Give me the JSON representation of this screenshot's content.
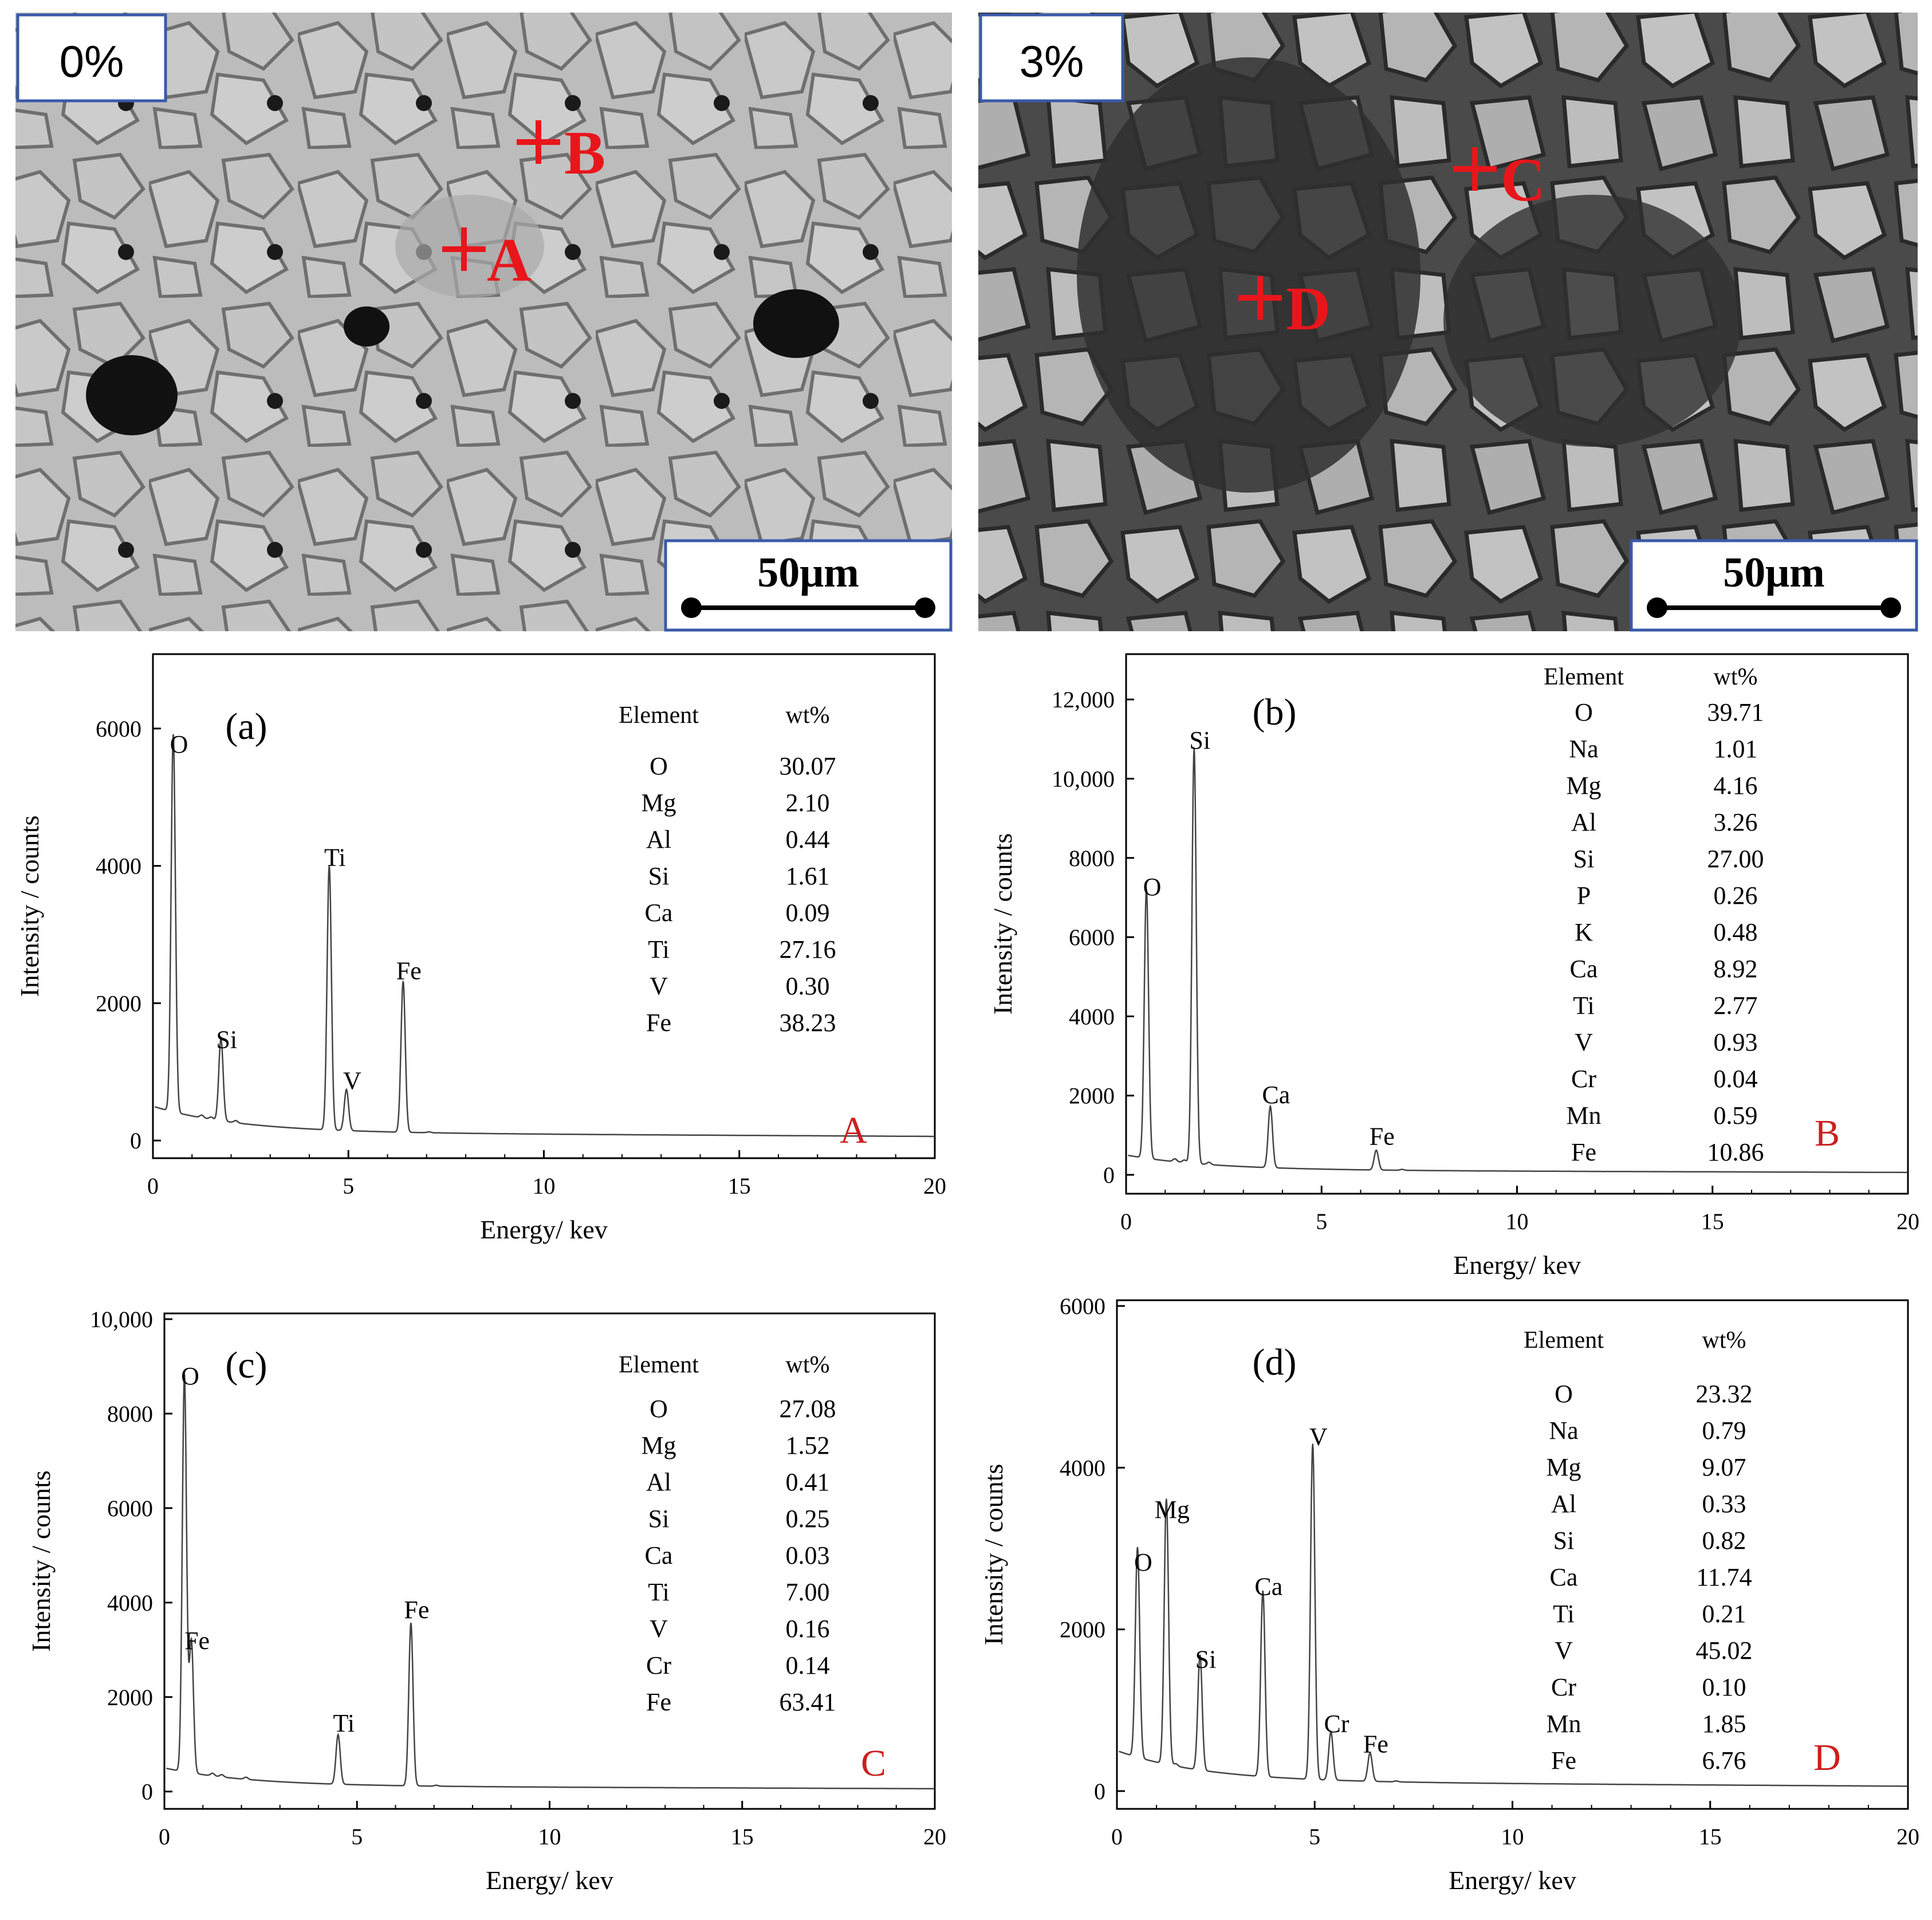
{
  "sem_panels": [
    {
      "label": "0%",
      "scalebar": "50μm",
      "points": [
        "A",
        "B"
      ]
    },
    {
      "label": "3%",
      "scalebar": "50μm",
      "points": [
        "C",
        "D"
      ]
    }
  ],
  "chart_data": [
    {
      "type": "line",
      "panel": "(a)",
      "point_label": "A",
      "xlabel": "Energy/ kev",
      "ylabel": "Intensity / counts",
      "xlim": [
        0,
        20
      ],
      "ylim": [
        0,
        7000
      ],
      "xticks": [
        0,
        5,
        10,
        15,
        20
      ],
      "yticks": [
        0,
        2000,
        4000,
        6000
      ],
      "ytick_labels": [
        "0",
        "2000",
        "4000",
        "6000"
      ],
      "peaks": [
        {
          "element": "O",
          "energy": 0.52,
          "intensity": 5500
        },
        {
          "element": "Si",
          "energy": 1.74,
          "intensity": 1200
        },
        {
          "element": "Ti",
          "energy": 4.51,
          "intensity": 3850
        },
        {
          "element": "V",
          "energy": 4.95,
          "intensity": 600
        },
        {
          "element": "Fe",
          "energy": 6.4,
          "intensity": 2200
        }
      ],
      "table_headers": [
        "Element",
        "wt%"
      ],
      "table": [
        [
          "O",
          "30.07"
        ],
        [
          "Mg",
          "2.10"
        ],
        [
          "Al",
          "0.44"
        ],
        [
          "Si",
          "1.61"
        ],
        [
          "Ca",
          "0.09"
        ],
        [
          "Ti",
          "27.16"
        ],
        [
          "V",
          "0.30"
        ],
        [
          "Fe",
          "38.23"
        ]
      ]
    },
    {
      "type": "line",
      "panel": "(b)",
      "point_label": "B",
      "xlabel": "Energy/ kev",
      "ylabel": "Intensity / counts",
      "xlim": [
        0,
        20
      ],
      "ylim": [
        0,
        13000
      ],
      "xticks": [
        0,
        5,
        10,
        15,
        20
      ],
      "yticks": [
        0,
        2000,
        4000,
        6000,
        8000,
        10000,
        12000
      ],
      "ytick_labels": [
        "0",
        "2000",
        "4000",
        "6000",
        "8000",
        "10,000",
        "12,000"
      ],
      "peaks": [
        {
          "element": "O",
          "energy": 0.52,
          "intensity": 6800
        },
        {
          "element": "Si",
          "energy": 1.74,
          "intensity": 10500
        },
        {
          "element": "Ca",
          "energy": 3.69,
          "intensity": 1550
        },
        {
          "element": "Fe",
          "energy": 6.4,
          "intensity": 500
        }
      ],
      "table_headers": [
        "Element",
        "wt%"
      ],
      "table": [
        [
          "O",
          "39.71"
        ],
        [
          "Na",
          "1.01"
        ],
        [
          "Mg",
          "4.16"
        ],
        [
          "Al",
          "3.26"
        ],
        [
          "Si",
          "27.00"
        ],
        [
          "P",
          "0.26"
        ],
        [
          "K",
          "0.48"
        ],
        [
          "Ca",
          "8.92"
        ],
        [
          "Ti",
          "2.77"
        ],
        [
          "V",
          "0.93"
        ],
        [
          "Cr",
          "0.04"
        ],
        [
          "Mn",
          "0.59"
        ],
        [
          "Fe",
          "10.86"
        ]
      ]
    },
    {
      "type": "line",
      "panel": "(c)",
      "point_label": "C",
      "xlabel": "Energy/ kev",
      "ylabel": "Intensity / counts",
      "xlim": [
        0,
        20
      ],
      "ylim": [
        0,
        10000
      ],
      "xticks": [
        0,
        5,
        10,
        15,
        20
      ],
      "yticks": [
        0,
        2000,
        4000,
        6000,
        8000,
        10000
      ],
      "ytick_labels": [
        "0",
        "2000",
        "4000",
        "6000",
        "8000",
        "10,000"
      ],
      "peaks": [
        {
          "element": "O",
          "energy": 0.52,
          "intensity": 8400
        },
        {
          "element": "Fe",
          "energy": 0.7,
          "intensity": 2800
        },
        {
          "element": "Ti",
          "energy": 4.51,
          "intensity": 1050
        },
        {
          "element": "Fe",
          "energy": 6.4,
          "intensity": 3450
        }
      ],
      "table_headers": [
        "Element",
        "wt%"
      ],
      "table": [
        [
          "O",
          "27.08"
        ],
        [
          "Mg",
          "1.52"
        ],
        [
          "Al",
          "0.41"
        ],
        [
          "Si",
          "0.25"
        ],
        [
          "Ca",
          "0.03"
        ],
        [
          "Ti",
          "7.00"
        ],
        [
          "V",
          "0.16"
        ],
        [
          "Cr",
          "0.14"
        ],
        [
          "Fe",
          "63.41"
        ]
      ]
    },
    {
      "type": "line",
      "panel": "(d)",
      "point_label": "D",
      "xlabel": "Energy/ kev",
      "ylabel": "Intensity / counts",
      "xlim": [
        0,
        20
      ],
      "ylim": [
        0,
        6000
      ],
      "xticks": [
        0,
        5,
        10,
        15,
        20
      ],
      "yticks": [
        0,
        2000,
        4000,
        6000
      ],
      "ytick_labels": [
        "0",
        "2000",
        "4000",
        "6000"
      ],
      "peaks": [
        {
          "element": "O",
          "energy": 0.52,
          "intensity": 2600
        },
        {
          "element": "Mg",
          "energy": 1.25,
          "intensity": 3250
        },
        {
          "element": "Si",
          "energy": 2.1,
          "intensity": 1400
        },
        {
          "element": "Ca",
          "energy": 3.69,
          "intensity": 2300
        },
        {
          "element": "V",
          "energy": 4.95,
          "intensity": 4150
        },
        {
          "element": "Cr",
          "energy": 5.41,
          "intensity": 600
        },
        {
          "element": "Fe",
          "energy": 6.4,
          "intensity": 350
        }
      ],
      "table_headers": [
        "Element",
        "wt%"
      ],
      "table": [
        [
          "O",
          "23.32"
        ],
        [
          "Na",
          "0.79"
        ],
        [
          "Mg",
          "9.07"
        ],
        [
          "Al",
          "0.33"
        ],
        [
          "Si",
          "0.82"
        ],
        [
          "Ca",
          "11.74"
        ],
        [
          "Ti",
          "0.21"
        ],
        [
          "V",
          "45.02"
        ],
        [
          "Cr",
          "0.10"
        ],
        [
          "Mn",
          "1.85"
        ],
        [
          "Fe",
          "6.76"
        ]
      ]
    }
  ],
  "colors": {
    "marker": "#e8161b",
    "label_red": "#cc1f1f",
    "box_border": "#3a5aa8",
    "sem_light": "#bdbdbd",
    "sem_dark": "#6a6a6a"
  }
}
